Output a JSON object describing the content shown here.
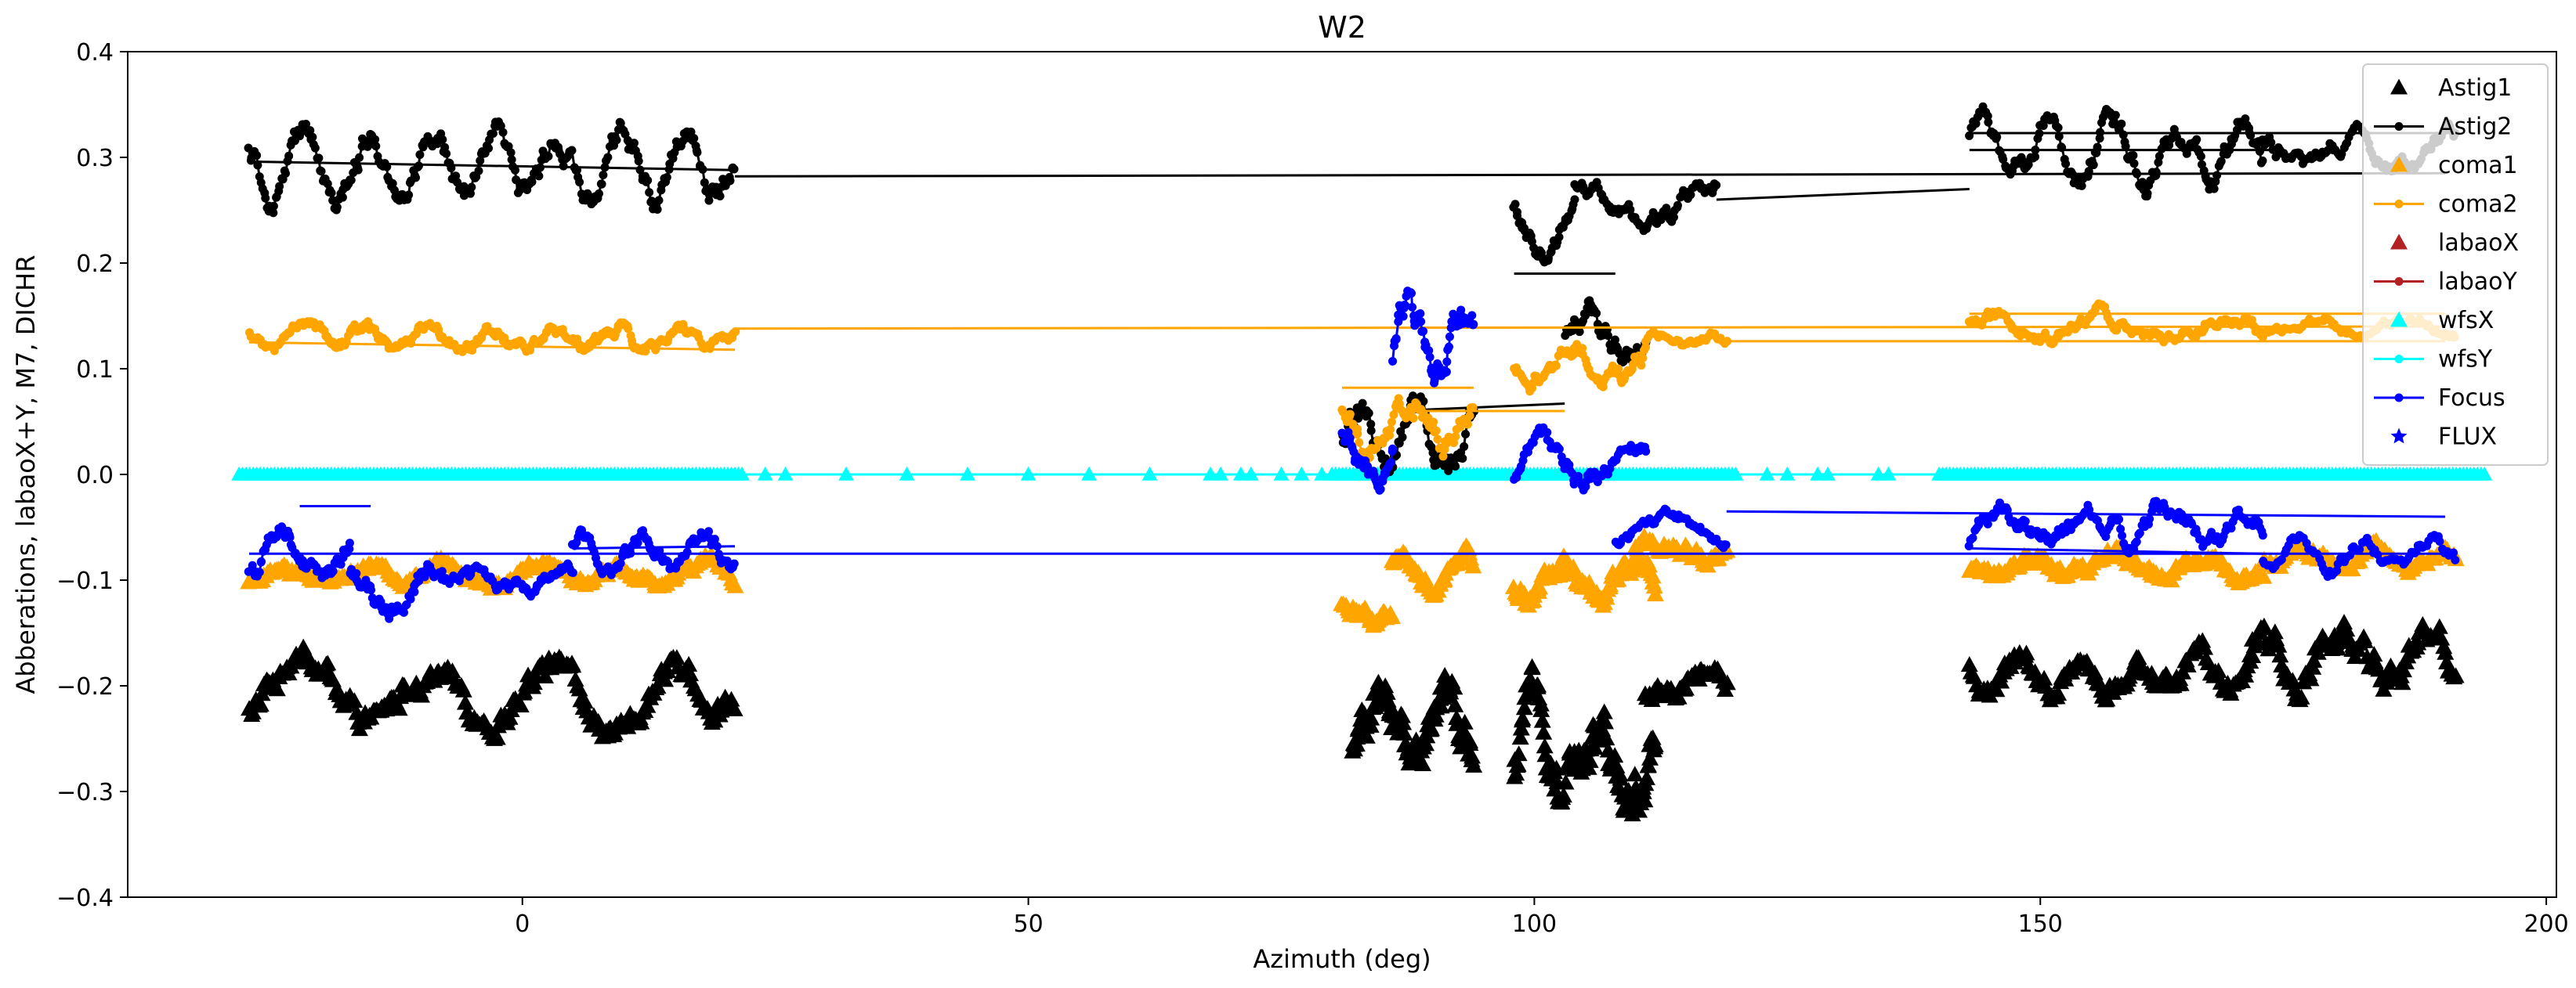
{
  "chart_data": {
    "type": "scatter",
    "title": "W2",
    "xlabel": "Azimuth (deg)",
    "ylabel": "Abberations, labaoX+Y, M7, DICHR",
    "xlim": [
      -39,
      201
    ],
    "ylim": [
      -0.4,
      0.4
    ],
    "xticks": [
      0,
      50,
      100,
      150,
      200
    ],
    "yticks": [
      -0.4,
      -0.3,
      -0.2,
      -0.1,
      0.0,
      0.1,
      0.2,
      0.3,
      0.4
    ],
    "ytick_labels": [
      "−0.4",
      "−0.3",
      "−0.2",
      "−0.1",
      "0.0",
      "0.1",
      "0.2",
      "0.3",
      "0.4"
    ],
    "grid": false,
    "legend_position": "top-right",
    "series": [
      {
        "name": "Astig1",
        "color": "#000000",
        "marker": "triangle",
        "line": false,
        "segments": [
          {
            "x0": -27,
            "x1": 21,
            "center": -0.205,
            "amp": 0.022,
            "noise": 0.018,
            "n": 260
          },
          {
            "x0": 82,
            "x1": 94,
            "center": -0.245,
            "amp": 0.025,
            "noise": 0.028,
            "n": 120
          },
          {
            "x0": 98,
            "x1": 112,
            "center": -0.265,
            "amp": 0.03,
            "noise": 0.03,
            "n": 140
          },
          {
            "x0": 111,
            "x1": 119,
            "center": -0.19,
            "amp": 0.015,
            "noise": 0.015,
            "n": 50
          },
          {
            "x0": 143,
            "x1": 171,
            "center": -0.19,
            "amp": 0.015,
            "noise": 0.015,
            "n": 160
          },
          {
            "x0": 171,
            "x1": 191,
            "center": -0.175,
            "amp": 0.025,
            "noise": 0.02,
            "n": 120
          }
        ]
      },
      {
        "name": "Astig2",
        "color": "#000000",
        "marker": "dot",
        "line": true,
        "segments": [
          {
            "x0": -27,
            "x1": 21,
            "center": 0.29,
            "amp": 0.028,
            "noise": 0.016,
            "n": 330
          },
          {
            "x0": 81,
            "x1": 94,
            "center": 0.03,
            "amp": 0.03,
            "noise": 0.02,
            "n": 90
          },
          {
            "x0": 98,
            "x1": 104,
            "center": 0.235,
            "amp": 0.02,
            "noise": 0.012,
            "n": 50
          },
          {
            "x0": 104,
            "x1": 118,
            "center": 0.255,
            "amp": 0.015,
            "noise": 0.012,
            "n": 90
          },
          {
            "x0": 103,
            "x1": 111,
            "center": 0.13,
            "amp": 0.02,
            "noise": 0.015,
            "n": 60
          },
          {
            "x0": 143,
            "x1": 172,
            "center": 0.305,
            "amp": 0.025,
            "noise": 0.015,
            "n": 200
          },
          {
            "x0": 172,
            "x1": 191,
            "center": 0.305,
            "amp": 0.015,
            "noise": 0.012,
            "n": 110
          }
        ],
        "lines": [
          {
            "x": [
              -27,
              21
            ],
            "y": [
              0.296,
              0.288
            ]
          },
          {
            "x": [
              21,
              190
            ],
            "y": [
              0.282,
              0.285
            ]
          },
          {
            "x": [
              118,
              143
            ],
            "y": [
              0.26,
              0.27
            ]
          },
          {
            "x": [
              143,
              191
            ],
            "y": [
              0.323,
              0.323
            ]
          },
          {
            "x": [
              143,
              173
            ],
            "y": [
              0.307,
              0.307
            ]
          },
          {
            "x": [
              86,
              103
            ],
            "y": [
              0.06,
              0.067
            ]
          },
          {
            "x": [
              98,
              108
            ],
            "y": [
              0.19,
              0.19
            ]
          }
        ]
      },
      {
        "name": "coma1",
        "color": "#ffa500",
        "marker": "triangle",
        "line": false,
        "segments": [
          {
            "x0": -27,
            "x1": 21,
            "center": -0.095,
            "amp": 0.01,
            "noise": 0.008,
            "n": 260
          },
          {
            "x0": 81,
            "x1": 86,
            "center": -0.135,
            "amp": 0.01,
            "noise": 0.01,
            "n": 40
          },
          {
            "x0": 86,
            "x1": 94,
            "center": -0.095,
            "amp": 0.012,
            "noise": 0.01,
            "n": 60
          },
          {
            "x0": 98,
            "x1": 112,
            "center": -0.1,
            "amp": 0.018,
            "noise": 0.014,
            "n": 120
          },
          {
            "x0": 110,
            "x1": 119,
            "center": -0.07,
            "amp": 0.01,
            "noise": 0.01,
            "n": 50
          },
          {
            "x0": 143,
            "x1": 172,
            "center": -0.085,
            "amp": 0.01,
            "noise": 0.01,
            "n": 160
          },
          {
            "x0": 172,
            "x1": 191,
            "center": -0.078,
            "amp": 0.008,
            "noise": 0.008,
            "n": 100
          }
        ]
      },
      {
        "name": "coma2",
        "color": "#ffa500",
        "marker": "dot",
        "line": true,
        "segments": [
          {
            "x0": -27,
            "x1": 21,
            "center": 0.13,
            "amp": 0.01,
            "noise": 0.008,
            "n": 330
          },
          {
            "x0": 81,
            "x1": 94,
            "center": 0.05,
            "amp": 0.02,
            "noise": 0.015,
            "n": 90
          },
          {
            "x0": 98,
            "x1": 111,
            "center": 0.105,
            "amp": 0.015,
            "noise": 0.012,
            "n": 90
          },
          {
            "x0": 111,
            "x1": 119,
            "center": 0.125,
            "amp": 0.006,
            "noise": 0.006,
            "n": 40
          },
          {
            "x0": 143,
            "x1": 172,
            "center": 0.138,
            "amp": 0.01,
            "noise": 0.008,
            "n": 200
          },
          {
            "x0": 172,
            "x1": 191,
            "center": 0.14,
            "amp": 0.006,
            "noise": 0.006,
            "n": 100
          }
        ],
        "lines": [
          {
            "x": [
              -27,
              21
            ],
            "y": [
              0.125,
              0.118
            ]
          },
          {
            "x": [
              21,
              190
            ],
            "y": [
              0.138,
              0.14
            ]
          },
          {
            "x": [
              143,
              190
            ],
            "y": [
              0.152,
              0.152
            ]
          },
          {
            "x": [
              119,
              190
            ],
            "y": [
              0.126,
              0.126
            ]
          },
          {
            "x": [
              81,
              94
            ],
            "y": [
              0.082,
              0.082
            ]
          },
          {
            "x": [
              86,
              103
            ],
            "y": [
              0.06,
              0.06
            ]
          }
        ]
      },
      {
        "name": "labaoX",
        "color": "#b22222",
        "marker": "triangle",
        "line": false,
        "segments": []
      },
      {
        "name": "labaoY",
        "color": "#b22222",
        "marker": "dot",
        "line": true,
        "segments": []
      },
      {
        "name": "wfsX",
        "color": "#00ffff",
        "marker": "triangle",
        "line": false,
        "value": 0.0,
        "dense_ranges": [
          [
            -28,
            22
          ],
          [
            80,
            120
          ],
          [
            140,
            194
          ]
        ],
        "sparse_x": [
          24,
          26,
          32,
          38,
          44,
          50,
          56,
          62,
          68,
          69,
          71,
          72,
          75,
          77,
          79,
          123,
          125,
          128,
          129,
          134,
          135
        ]
      },
      {
        "name": "wfsY",
        "color": "#00ffff",
        "marker": "dot",
        "line": true,
        "value": 0.0,
        "line_range": [
          -28,
          194
        ]
      },
      {
        "name": "Focus",
        "color": "#0000ff",
        "marker": "dot",
        "line": true,
        "segments": [
          {
            "x0": -27,
            "x1": -17,
            "center": -0.075,
            "amp": 0.02,
            "noise": 0.012,
            "n": 80
          },
          {
            "x0": -17,
            "x1": -8,
            "center": -0.11,
            "amp": 0.018,
            "noise": 0.012,
            "n": 70
          },
          {
            "x0": -8,
            "x1": 5,
            "center": -0.1,
            "amp": 0.01,
            "noise": 0.008,
            "n": 90
          },
          {
            "x0": 5,
            "x1": 21,
            "center": -0.075,
            "amp": 0.015,
            "noise": 0.01,
            "n": 110
          },
          {
            "x0": 81,
            "x1": 86,
            "center": 0.03,
            "amp": 0.02,
            "noise": 0.015,
            "n": 50
          },
          {
            "x0": 86,
            "x1": 94,
            "center": 0.12,
            "amp": 0.03,
            "noise": 0.02,
            "n": 80
          },
          {
            "x0": 98,
            "x1": 111,
            "center": 0.01,
            "amp": 0.02,
            "noise": 0.012,
            "n": 90
          },
          {
            "x0": 108,
            "x1": 119,
            "center": -0.05,
            "amp": 0.012,
            "noise": 0.008,
            "n": 60
          },
          {
            "x0": 143,
            "x1": 172,
            "center": -0.05,
            "amp": 0.015,
            "noise": 0.012,
            "n": 180
          },
          {
            "x0": 172,
            "x1": 191,
            "center": -0.075,
            "amp": 0.01,
            "noise": 0.01,
            "n": 90
          }
        ],
        "lines": [
          {
            "x": [
              -27,
              190
            ],
            "y": [
              -0.075,
              -0.075
            ]
          },
          {
            "x": [
              21,
              5
            ],
            "y": [
              -0.068,
              -0.07
            ]
          },
          {
            "x": [
              -22,
              -15
            ],
            "y": [
              -0.03,
              -0.03
            ]
          },
          {
            "x": [
              119,
              190
            ],
            "y": [
              -0.035,
              -0.04
            ]
          },
          {
            "x": [
              143,
              172
            ],
            "y": [
              -0.07,
              -0.075
            ]
          }
        ]
      },
      {
        "name": "FLUX",
        "color": "#0000ff",
        "marker": "star",
        "line": false,
        "segments": []
      }
    ]
  }
}
